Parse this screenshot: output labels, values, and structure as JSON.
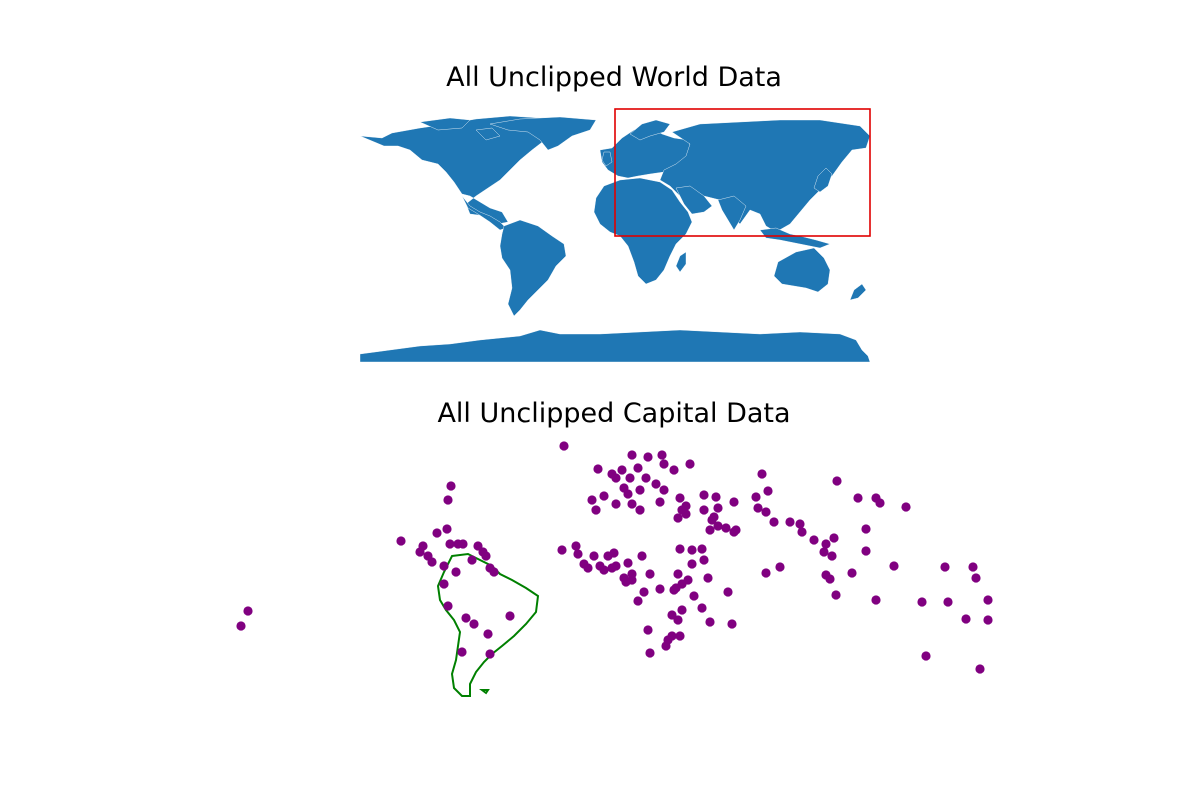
{
  "figure": {
    "world_title": "All Unclipped World Data",
    "capital_title": "All Unclipped Capital Data"
  },
  "colors": {
    "land": "#1f77b4",
    "country_border": "#ffffff",
    "clip_box": "#e00000",
    "capital_point": "#800080",
    "south_america_outline": "#008000"
  },
  "chart_data": [
    {
      "type": "map",
      "title": "All Unclipped World Data",
      "layer": "world country polygons (filled)",
      "clip_box": {
        "lon": [
          -30,
          180
        ],
        "lat": [
          0,
          90
        ]
      },
      "axes_visible": false
    },
    {
      "type": "scatter",
      "title": "All Unclipped Capital Data",
      "layers": [
        "capital city points",
        "South America outline"
      ],
      "axes_visible": false
    }
  ]
}
